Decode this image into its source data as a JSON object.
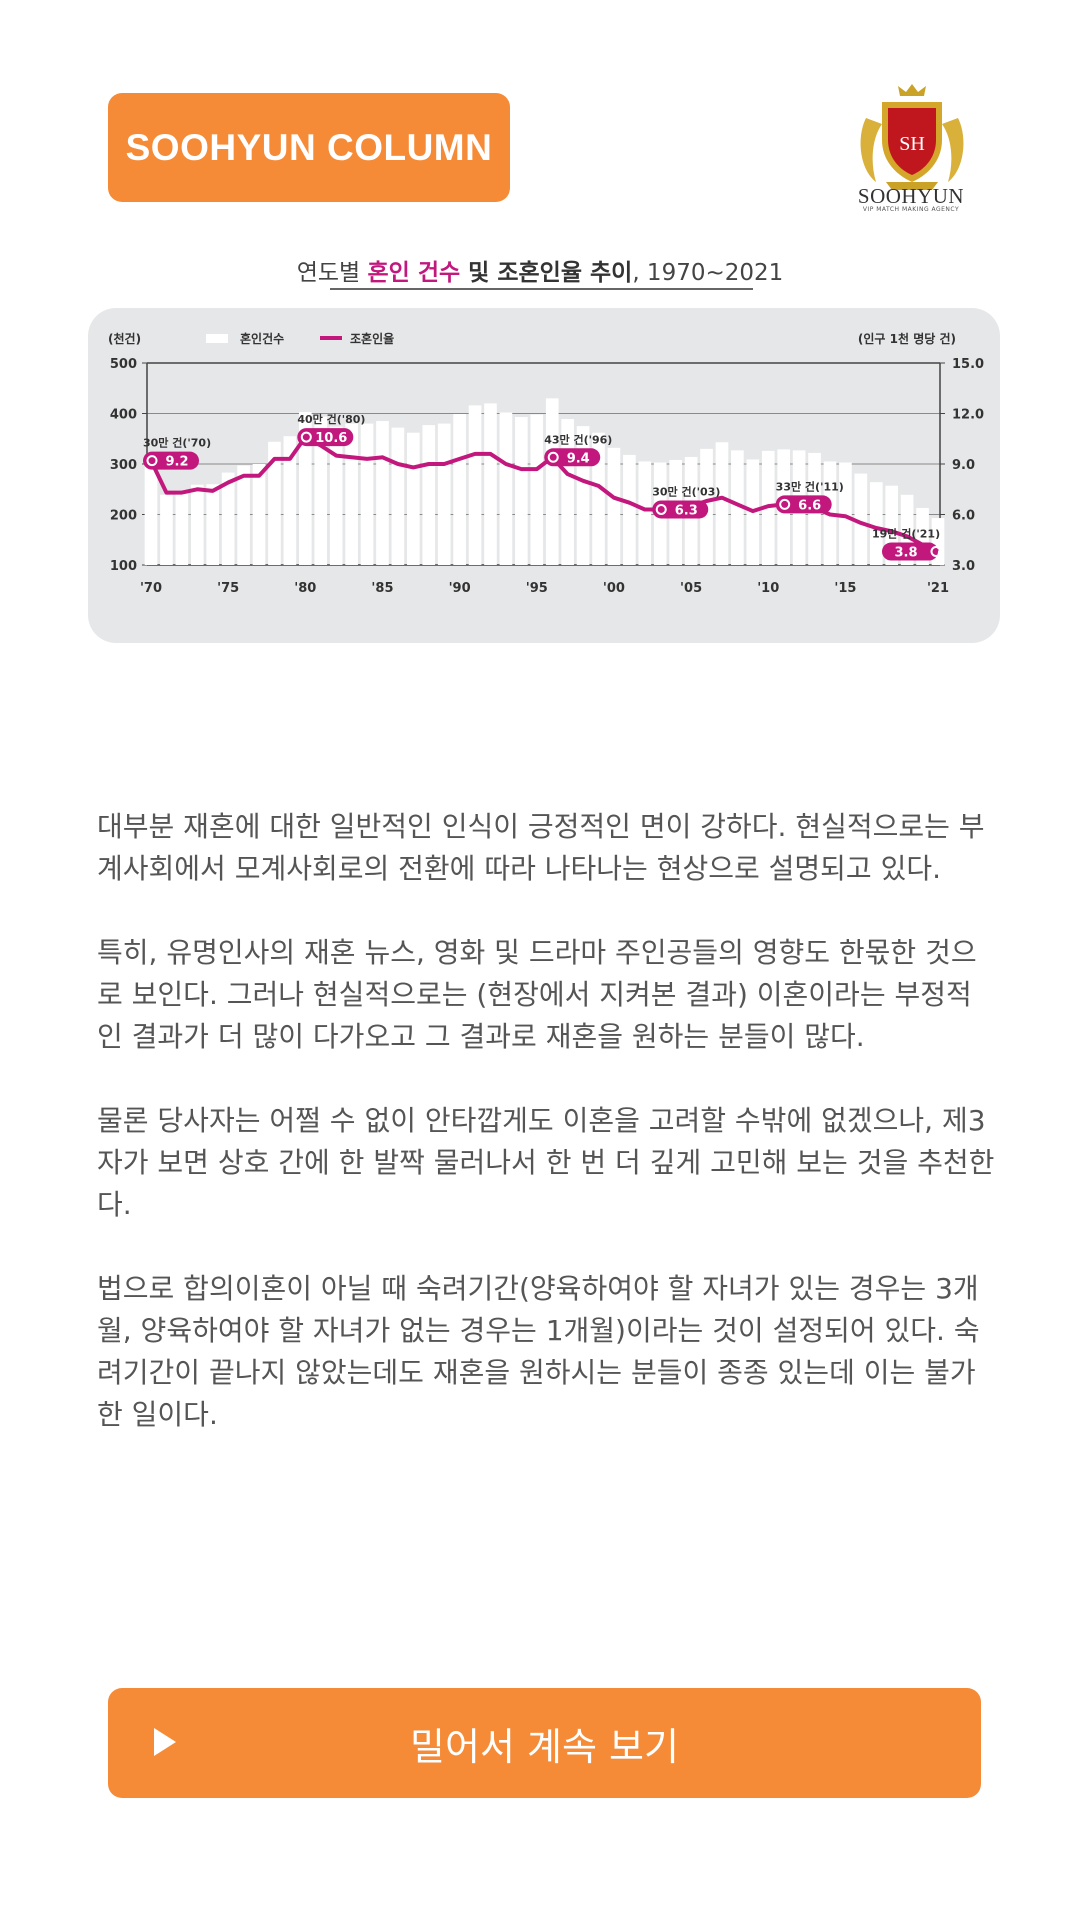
{
  "header": {
    "badge_label": "SOOHYUN COLUMN"
  },
  "brand": {
    "logo_monogram": "SH",
    "logo_name": "SOOHYUN",
    "logo_tagline": "VIP MATCH MAKING AGENCY",
    "brand_color": "#F68B37",
    "accent_color": "#C2187E"
  },
  "chart_heading": {
    "prefix": "연도별 ",
    "highlight": "혼인 건수",
    "mid": " 및 ",
    "bold": "조혼인율 추이",
    "suffix": ", 1970~2021"
  },
  "chart_data": {
    "type": "bar+line",
    "left_unit": "(천건)",
    "right_unit": "(인구 1천 명당 건)",
    "legend": [
      "혼인건수",
      "조혼인율"
    ],
    "y_left_ticks": [
      "500",
      "400",
      "300",
      "200",
      "100"
    ],
    "y_right_ticks": [
      "15.0",
      "12.0",
      "9.0",
      "6.0",
      "3.0"
    ],
    "ylim_left": [
      100,
      500
    ],
    "ylim_right": [
      3.0,
      15.0
    ],
    "x_tick_labels": [
      "'70",
      "'75",
      "'80",
      "'85",
      "'90",
      "'95",
      "'00",
      "'05",
      "'10",
      "'15",
      "'21"
    ],
    "years": [
      1970,
      1971,
      1972,
      1973,
      1974,
      1975,
      1976,
      1977,
      1978,
      1979,
      1980,
      1981,
      1982,
      1983,
      1984,
      1985,
      1986,
      1987,
      1988,
      1989,
      1990,
      1991,
      1992,
      1993,
      1994,
      1995,
      1996,
      1997,
      1998,
      1999,
      2000,
      2001,
      2002,
      2003,
      2004,
      2005,
      2006,
      2007,
      2008,
      2009,
      2010,
      2011,
      2012,
      2013,
      2014,
      2015,
      2016,
      2017,
      2018,
      2019,
      2020,
      2021
    ],
    "marriages_thousand": [
      295,
      239,
      244,
      259,
      260,
      283,
      297,
      300,
      344,
      355,
      403,
      394,
      374,
      380,
      380,
      385,
      372,
      362,
      377,
      380,
      399,
      416,
      420,
      402,
      393,
      398,
      430,
      389,
      375,
      362,
      332,
      318,
      305,
      303,
      308,
      314,
      330,
      343,
      327,
      309,
      326,
      329,
      327,
      322,
      305,
      303,
      281,
      264,
      257,
      239,
      213,
      193
    ],
    "crude_rate": [
      9.2,
      7.3,
      7.3,
      7.5,
      7.4,
      7.9,
      8.3,
      8.3,
      9.3,
      9.3,
      10.6,
      10.1,
      9.5,
      9.4,
      9.3,
      9.4,
      9.0,
      8.8,
      9.0,
      9.0,
      9.3,
      9.6,
      9.6,
      9.0,
      8.7,
      8.7,
      9.4,
      8.4,
      8.0,
      7.7,
      7.0,
      6.7,
      6.3,
      6.3,
      6.4,
      6.5,
      6.8,
      7.0,
      6.6,
      6.2,
      6.5,
      6.6,
      6.5,
      6.4,
      6.0,
      5.9,
      5.5,
      5.2,
      5.0,
      4.7,
      4.2,
      3.8
    ],
    "annotations": [
      {
        "label": "30만 건('70)",
        "value": "9.2"
      },
      {
        "label": "40만 건('80)",
        "value": "10.6"
      },
      {
        "label": "43만 건('96)",
        "value": "9.4"
      },
      {
        "label": "30만 건('03)",
        "value": "6.3"
      },
      {
        "label": "33만 건('11)",
        "value": "6.6"
      },
      {
        "label": "19만 건('21)",
        "value": "3.8"
      }
    ],
    "grid": true,
    "legend_position": "top-left"
  },
  "article": {
    "paragraphs": [
      "대부분 재혼에 대한 일반적인 인식이 긍정적인 면이 강하다. 현실적으로는 부계사회에서 모계사회로의 전환에 따라 나타나는 현상으로 설명되고 있다.",
      "특히, 유명인사의 재혼 뉴스, 영화 및 드라마 주인공들의 영향도 한몫한 것으로 보인다. 그러나 현실적으로는 (현장에서 지켜본 결과) 이혼이라는 부정적인 결과가 더 많이 다가오고 그 결과로 재혼을 원하는 분들이 많다.",
      "물론 당사자는 어쩔 수 없이 안타깝게도 이혼을 고려할 수밖에 없겠으나, 제3자가 보면 상호 간에 한 발짝 물러나서 한 번 더 깊게 고민해 보는 것을 추천한다.",
      "법으로 합의이혼이 아닐 때 숙려기간(양육하여야 할 자녀가 있는 경우는 3개월, 양육하여야 할 자녀가 없는 경우는 1개월)이라는 것이 설정되어 있다. 숙려기간이 끝나지 않았는데도 재혼을 원하시는 분들이 종종 있는데 이는 불가한 일이다."
    ]
  },
  "cta": {
    "label": "밀어서 계속 보기",
    "icon": "play-icon"
  }
}
